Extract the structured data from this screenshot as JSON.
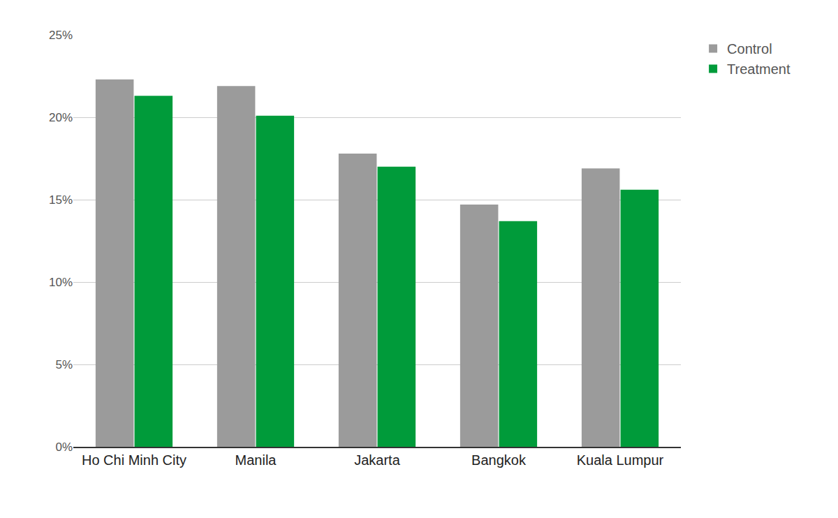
{
  "chart_data": {
    "type": "bar",
    "categories": [
      "Ho Chi Minh City",
      "Manila",
      "Jakarta",
      "Bangkok",
      "Kuala Lumpur"
    ],
    "series": [
      {
        "name": "Control",
        "color": "#9b9b9b",
        "values": [
          22.3,
          21.9,
          17.8,
          14.7,
          16.9
        ]
      },
      {
        "name": "Treatment",
        "color": "#009b3a",
        "values": [
          21.3,
          20.1,
          17.0,
          13.7,
          15.6
        ]
      }
    ],
    "ylim": [
      0,
      25
    ],
    "yticks": [
      {
        "value": 0,
        "label": "0%"
      },
      {
        "value": 5,
        "label": "5%"
      },
      {
        "value": 10,
        "label": "10%"
      },
      {
        "value": 15,
        "label": "15%"
      },
      {
        "value": 20,
        "label": "20%"
      },
      {
        "value": 25,
        "label": "25%"
      }
    ],
    "grid": true,
    "legend": "top-right"
  }
}
